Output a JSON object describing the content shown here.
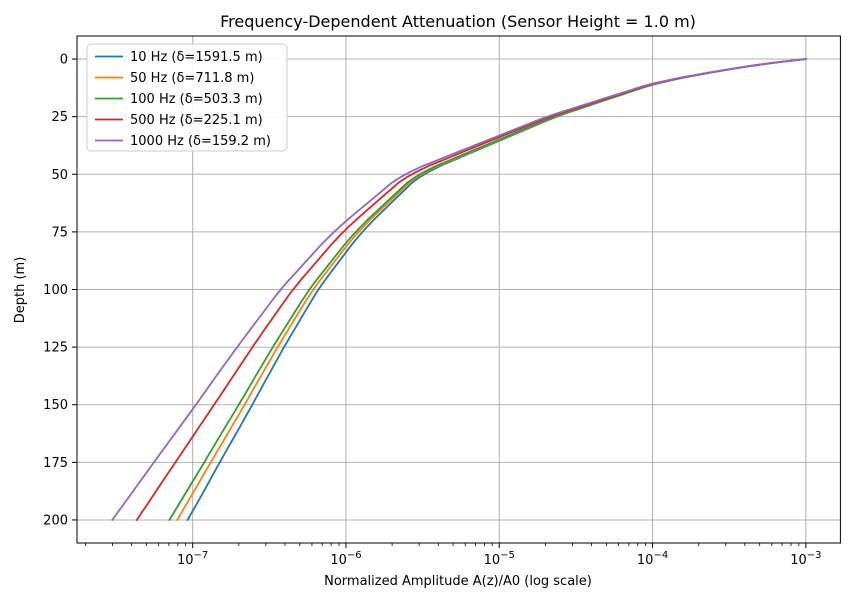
{
  "figure": {
    "title": "Frequency-Dependent Attenuation (Sensor Height = 1.0 m)",
    "xlabel": "Normalized Amplitude A(z)/A0 (log scale)",
    "ylabel": "Depth (m)"
  },
  "chart_data": {
    "type": "line",
    "title": "Frequency-Dependent Attenuation (Sensor Height = 1.0 m)",
    "xlabel": "Normalized Amplitude A(z)/A0 (log scale)",
    "ylabel": "Depth (m)",
    "x_scale": "log",
    "y_inverted": true,
    "grid": true,
    "legend_position": "upper left",
    "xlim": [
      1.76e-08,
      0.00168
    ],
    "ylim": [
      -10,
      210
    ],
    "x_major_tick_exponents": [
      -7,
      -6,
      -5,
      -4,
      -3
    ],
    "y_ticks": [
      0,
      25,
      50,
      75,
      100,
      125,
      150,
      175,
      200
    ],
    "sensor_height_m": 1.0,
    "depths_m": [
      0,
      2,
      5,
      10,
      15,
      20,
      25,
      30,
      40,
      50,
      60,
      75,
      90,
      100,
      115,
      125,
      140,
      150,
      165,
      175,
      190,
      200
    ],
    "series": [
      {
        "label": "10 Hz (δ=1591.5 m)",
        "frequency_hz": 10,
        "skin_depth_m": 1591.5,
        "color": "#1f77b4",
        "amplitudes": [
          0.001,
          0.000549,
          0.000281,
          0.000112,
          6.62e-05,
          3.94e-05,
          2.34e-05,
          1.56e-05,
          6.92e-06,
          3.08e-06,
          2.15e-06,
          1.26e-06,
          8.52e-07,
          6.57e-07,
          4.84e-07,
          3.94e-07,
          2.96e-07,
          2.45e-07,
          1.83e-07,
          1.5e-07,
          1.13e-07,
          9.26e-08
        ]
      },
      {
        "label": "50 Hz (δ=711.8 m)",
        "frequency_hz": 50,
        "skin_depth_m": 711.8,
        "color": "#ff7f0e",
        "amplitudes": [
          0.001,
          0.000548,
          0.00028,
          0.000111,
          6.54e-05,
          3.88e-05,
          2.29e-05,
          1.52e-05,
          6.71e-06,
          2.96e-06,
          2.05e-06,
          1.19e-06,
          7.95e-07,
          6.08e-07,
          4.42e-07,
          3.58e-07,
          2.66e-07,
          2.18e-07,
          1.61e-07,
          1.31e-07,
          9.71e-08,
          7.93e-08
        ]
      },
      {
        "label": "100 Hz (δ=503.3 m)",
        "frequency_hz": 100,
        "skin_depth_m": 503.3,
        "color": "#2ca02c",
        "amplitudes": [
          0.001,
          0.000547,
          0.000279,
          0.00011,
          6.49e-05,
          3.83e-05,
          2.26e-05,
          1.5e-05,
          6.55e-06,
          2.88e-06,
          1.98e-06,
          1.14e-06,
          7.54e-07,
          5.74e-07,
          4.14e-07,
          3.33e-07,
          2.45e-07,
          2e-07,
          1.46e-07,
          1.19e-07,
          8.69e-08,
          7.05e-08
        ]
      },
      {
        "label": "500 Hz (δ=225.1 m)",
        "frequency_hz": 500,
        "skin_depth_m": 225.1,
        "color": "#d62728",
        "amplitudes": [
          0.001,
          0.000545,
          0.000276,
          0.000107,
          6.25e-05,
          3.65e-05,
          2.13e-05,
          1.39e-05,
          5.94e-06,
          2.55e-06,
          1.71e-06,
          9.45e-07,
          6.05e-07,
          4.49e-07,
          3.12e-07,
          2.45e-07,
          1.74e-07,
          1.38e-07,
          9.74e-08,
          7.71e-08,
          5.45e-08,
          4.32e-08
        ]
      },
      {
        "label": "1000 Hz (δ=159.2 m)",
        "frequency_hz": 1000,
        "skin_depth_m": 159.2,
        "color": "#9467bd",
        "amplitudes": [
          0.001,
          0.000543,
          0.000273,
          0.000105,
          6.08e-05,
          3.52e-05,
          2.03e-05,
          1.32e-05,
          5.52e-06,
          2.32e-06,
          1.53e-06,
          8.23e-07,
          5.12e-07,
          3.73e-07,
          2.53e-07,
          1.95e-07,
          1.34e-07,
          1.05e-07,
          7.19e-08,
          5.59e-08,
          3.84e-08,
          2.99e-08
        ]
      }
    ],
    "colors": {
      "grid": "#b0b0b0",
      "axis": "#000000",
      "background": "#ffffff",
      "legend_border": "#cccccc"
    }
  }
}
